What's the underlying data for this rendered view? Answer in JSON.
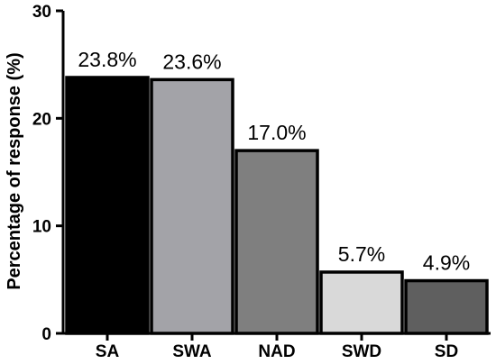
{
  "chart_data": {
    "type": "bar",
    "title": "",
    "xlabel": "",
    "ylabel": "Percentage of response (%)",
    "ylim": [
      0,
      30
    ],
    "yticks": [
      0,
      10,
      20,
      30
    ],
    "categories": [
      "SA",
      "SWA",
      "NAD",
      "SWD",
      "SD"
    ],
    "values": [
      23.8,
      23.6,
      17.0,
      5.7,
      4.9
    ],
    "data_labels": [
      "23.8%",
      "23.6%",
      "17.0%",
      "5.7%",
      "4.9%"
    ],
    "colors": [
      "#000000",
      "#a3a3a8",
      "#7f7f7f",
      "#d9d9d9",
      "#5f5f5f"
    ],
    "bar_outline": "#000000",
    "grid": false,
    "legend": "none"
  }
}
